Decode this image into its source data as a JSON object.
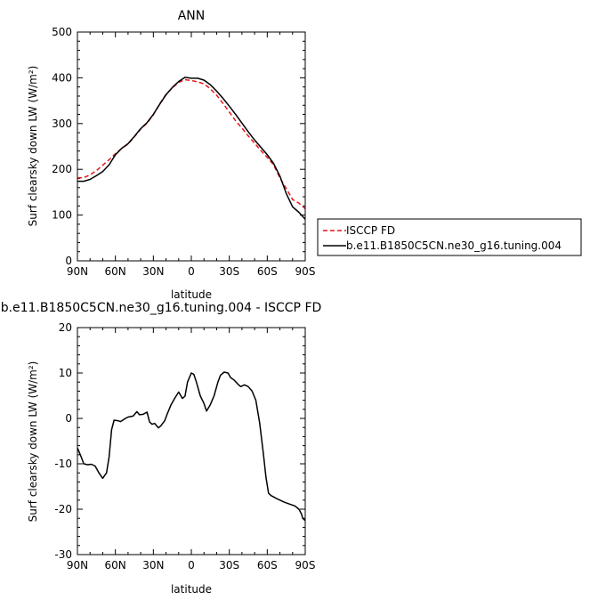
{
  "chart_data": [
    {
      "type": "line",
      "title": "ANN",
      "xlabel": "latitude",
      "ylabel": "Surf clearsky down LW (W/m²)",
      "ylim": [
        0,
        500
      ],
      "yticks": [
        0,
        100,
        200,
        300,
        400,
        500
      ],
      "xlim": [
        90,
        -90
      ],
      "xticks": [
        90,
        60,
        30,
        0,
        -30,
        -60,
        -90
      ],
      "xticklabels": [
        "90N",
        "60N",
        "30N",
        "0",
        "30S",
        "60S",
        "90S"
      ],
      "legend": "right, outside plot",
      "colors": {
        "ISCCP FD": "#e8141a",
        "model": "#000000"
      },
      "series": [
        {
          "name": "ISCCP FD",
          "style": "dashed",
          "x": [
            90,
            85,
            80,
            75,
            70,
            65,
            60,
            55,
            50,
            45,
            40,
            35,
            30,
            25,
            20,
            15,
            10,
            5,
            0,
            -5,
            -10,
            -15,
            -20,
            -25,
            -30,
            -35,
            -40,
            -45,
            -50,
            -55,
            -60,
            -65,
            -70,
            -75,
            -80,
            -85,
            -90
          ],
          "y": [
            181,
            182,
            188,
            197,
            209,
            221,
            234,
            246,
            255,
            271,
            288,
            301,
            319,
            343,
            364,
            378,
            390,
            396,
            394,
            391,
            387,
            376,
            362,
            344,
            325,
            306,
            290,
            273,
            257,
            241,
            226,
            210,
            181,
            158,
            134,
            126,
            114
          ]
        },
        {
          "name": "b.e11.B1850C5CN.ne30_g16.tuning.004",
          "style": "solid",
          "x": [
            90,
            85,
            80,
            75,
            70,
            65,
            60,
            55,
            50,
            45,
            40,
            35,
            30,
            25,
            20,
            15,
            10,
            5,
            0,
            -5,
            -10,
            -15,
            -20,
            -25,
            -30,
            -35,
            -40,
            -45,
            -50,
            -55,
            -60,
            -65,
            -70,
            -75,
            -80,
            -85,
            -90
          ],
          "y": [
            174,
            174,
            178,
            186,
            195,
            210,
            232,
            246,
            256,
            272,
            289,
            302,
            320,
            342,
            363,
            379,
            392,
            401,
            399,
            399,
            395,
            385,
            371,
            355,
            338,
            320,
            301,
            282,
            264,
            248,
            232,
            213,
            185,
            147,
            118,
            106,
            91
          ]
        }
      ]
    },
    {
      "type": "line",
      "title": "b.e11.B1850C5CN.ne30_g16.tuning.004 - ISCCP FD",
      "xlabel": "latitude",
      "ylabel": "Surf clearsky down LW (W/m²)",
      "ylim": [
        -30,
        20
      ],
      "yticks": [
        -30,
        -20,
        -10,
        0,
        10,
        20
      ],
      "xlim": [
        90,
        -90
      ],
      "xticks": [
        90,
        60,
        30,
        0,
        -30,
        -60,
        -90
      ],
      "xticklabels": [
        "90N",
        "60N",
        "30N",
        "0",
        "30S",
        "60S",
        "90S"
      ],
      "series": [
        {
          "style": "solid",
          "x": [
            90,
            87,
            85,
            82,
            79,
            76,
            73,
            70,
            67,
            65,
            63,
            61,
            58,
            56,
            52,
            50,
            46,
            43,
            41,
            38,
            35,
            33,
            31,
            29,
            26,
            24,
            21,
            19,
            16,
            13,
            10,
            7,
            5,
            3,
            0,
            -2,
            -4,
            -7,
            -10,
            -12,
            -15,
            -18,
            -21,
            -23,
            -26,
            -29,
            -31,
            -34,
            -37,
            -39,
            -42,
            -45,
            -48,
            -51,
            -54,
            -57,
            -59,
            -61,
            -63,
            -65,
            -67,
            -70,
            -73,
            -76,
            -79,
            -82,
            -85,
            -87,
            -88,
            -90
          ],
          "y": [
            -6.5,
            -8.5,
            -10,
            -10.2,
            -10.1,
            -10.5,
            -12,
            -13.2,
            -12,
            -8.5,
            -2.5,
            -0.4,
            -0.5,
            -0.7,
            0,
            0.3,
            0.5,
            1.5,
            0.8,
            0.9,
            1.4,
            -0.8,
            -1.3,
            -1.1,
            -2.1,
            -1.6,
            -0.5,
            1,
            3,
            4.5,
            5.8,
            4.4,
            4.9,
            8,
            10,
            9.7,
            8,
            5,
            3.3,
            1.6,
            3,
            5,
            8,
            9.5,
            10.2,
            10,
            9,
            8.4,
            7.5,
            7,
            7.4,
            7,
            6,
            4,
            -1,
            -8,
            -13,
            -16.5,
            -17,
            -17.3,
            -17.6,
            -18,
            -18.4,
            -18.7,
            -19,
            -19.3,
            -20,
            -21,
            -22,
            -22.5
          ]
        }
      ]
    }
  ]
}
